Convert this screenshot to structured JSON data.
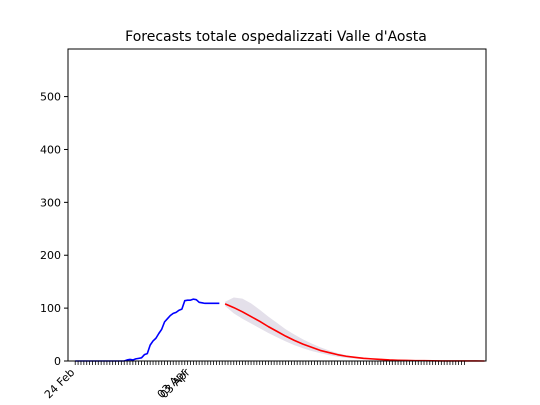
{
  "chart_data": {
    "type": "line",
    "title": "Forecasts totale ospedalizzati Valle d'Aosta",
    "xlabel": "",
    "ylabel": "",
    "ylim": [
      0,
      590
    ],
    "xlim": [
      -2.5,
      142.5
    ],
    "y_ticks": [
      0,
      100,
      200,
      300,
      400,
      500
    ],
    "x_tick_labels": [
      {
        "label": "24 Feb",
        "x": 0
      },
      {
        "label": "03 Apr",
        "x": 39
      },
      {
        "label": "03 Apr",
        "x": 40
      }
    ],
    "minor_tick_days": 136,
    "grid": false,
    "series": [
      {
        "color": "#0000ff",
        "role": "observed",
        "x": [
          0,
          1,
          2,
          3,
          4,
          5,
          6,
          7,
          8,
          9,
          10,
          11,
          12,
          13,
          14,
          15,
          16,
          17,
          18,
          19,
          20,
          21,
          22,
          23,
          24,
          25,
          26,
          27,
          28,
          29,
          30,
          31,
          32,
          33,
          34,
          35,
          36,
          37,
          38,
          39,
          40,
          41,
          42,
          43,
          44,
          45,
          46,
          47,
          48,
          49,
          50
        ],
        "y": [
          0,
          0,
          0,
          0,
          0,
          0,
          0,
          0,
          0,
          0,
          0,
          0,
          0,
          0,
          0,
          0,
          0,
          0,
          2,
          3,
          2,
          4,
          5,
          6,
          12,
          14,
          30,
          38,
          43,
          52,
          60,
          74,
          80,
          86,
          90,
          92,
          96,
          98,
          114,
          115,
          115,
          117,
          116,
          111,
          110,
          109,
          109,
          109,
          109,
          109,
          109
        ]
      },
      {
        "color": "#ff0000",
        "role": "forecast",
        "x": [
          52,
          55,
          58,
          61,
          64,
          67,
          70,
          73,
          76,
          79,
          82,
          85,
          88,
          91,
          94,
          97,
          100,
          103,
          106,
          109,
          112,
          115,
          118,
          121,
          124,
          127,
          130,
          133,
          136,
          139,
          142
        ],
        "y": [
          108,
          101,
          93,
          84,
          75,
          65,
          56,
          47,
          39,
          32,
          26,
          20,
          16,
          12,
          9,
          7,
          5,
          4,
          3,
          2,
          1.4,
          1,
          0.7,
          0.5,
          0.3,
          0.2,
          0.15,
          0.1,
          0.06,
          0.04,
          0.02
        ],
        "band_upper": [
          112,
          120,
          118,
          109,
          97,
          84,
          72,
          60,
          50,
          41,
          33,
          26,
          20,
          15,
          11,
          8,
          6,
          4.5,
          3.3,
          2.4,
          1.7,
          1.2,
          0.9,
          0.6,
          0.4,
          0.3,
          0.2,
          0.12,
          0.08,
          0.05,
          0.03
        ],
        "band_lower": [
          104,
          90,
          80,
          71,
          62,
          53,
          45,
          37,
          30,
          24,
          19,
          15,
          11,
          8,
          6,
          4.5,
          3.3,
          2.4,
          1.7,
          1.2,
          0.8,
          0.6,
          0.4,
          0.3,
          0.2,
          0.12,
          0.08,
          0.05,
          0.03,
          0.02,
          0.01
        ]
      }
    ],
    "band_color": "#e4e0ea"
  }
}
